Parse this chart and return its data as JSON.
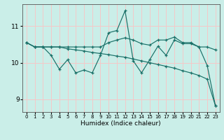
{
  "xlabel": "Humidex (Indice chaleur)",
  "background_color": "#caeee8",
  "grid_color": "#f5c8c8",
  "line_color": "#1a7068",
  "xlim": [
    -0.5,
    23.5
  ],
  "ylim": [
    8.65,
    11.6
  ],
  "yticks": [
    9,
    10,
    11
  ],
  "xticks": [
    0,
    1,
    2,
    3,
    4,
    5,
    6,
    7,
    8,
    9,
    10,
    11,
    12,
    13,
    14,
    15,
    16,
    17,
    18,
    19,
    20,
    21,
    22,
    23
  ],
  "line1_y": [
    10.55,
    10.43,
    10.43,
    10.2,
    9.82,
    10.08,
    9.72,
    9.8,
    9.72,
    10.2,
    10.82,
    10.88,
    11.42,
    10.05,
    9.72,
    10.08,
    10.45,
    10.2,
    10.62,
    10.52,
    10.52,
    10.43,
    9.92,
    8.82
  ],
  "line2_y": [
    10.55,
    10.43,
    10.43,
    10.43,
    10.43,
    10.38,
    10.35,
    10.32,
    10.28,
    10.25,
    10.22,
    10.18,
    10.15,
    10.1,
    10.05,
    10.0,
    9.95,
    9.9,
    9.85,
    9.78,
    9.72,
    9.65,
    9.55,
    8.82
  ],
  "line3_y": [
    10.55,
    10.43,
    10.43,
    10.43,
    10.43,
    10.43,
    10.43,
    10.43,
    10.43,
    10.43,
    10.55,
    10.62,
    10.68,
    10.62,
    10.52,
    10.48,
    10.62,
    10.62,
    10.7,
    10.55,
    10.55,
    10.43,
    10.43,
    10.35
  ]
}
